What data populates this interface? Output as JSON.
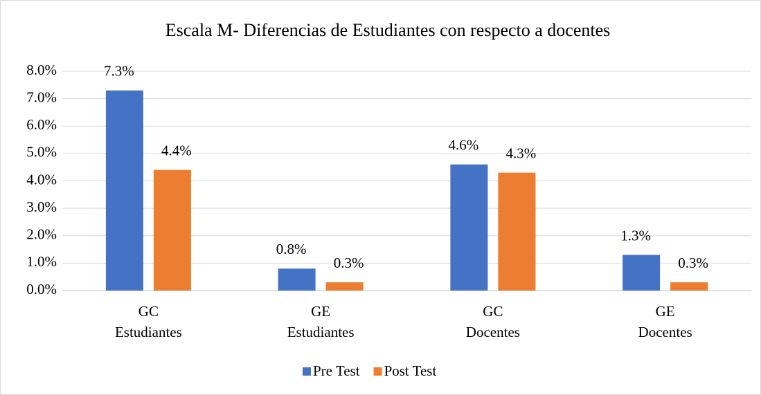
{
  "chart_data": {
    "type": "bar",
    "title": "Escala M- Diferencias  de Estudiantes con respecto a docentes",
    "categories": [
      [
        "GC",
        "Estudiantes"
      ],
      [
        "GE",
        "Estudiantes"
      ],
      [
        "GC",
        "Docentes"
      ],
      [
        "GE",
        "Docentes"
      ]
    ],
    "series": [
      {
        "name": "Pre Test",
        "color": "#4472c4",
        "values": [
          7.3,
          0.8,
          4.6,
          1.3
        ],
        "value_labels": [
          "7.3%",
          "0.8%",
          "4.6%",
          "1.3%"
        ]
      },
      {
        "name": "Post Test",
        "color": "#ed7d31",
        "values": [
          4.4,
          0.3,
          4.3,
          0.3
        ],
        "value_labels": [
          "4.4%",
          "0.3%",
          "4.3%",
          "0.3%"
        ]
      }
    ],
    "ylim": [
      0,
      8
    ],
    "yticks": [
      {
        "value": 0,
        "label": "0.0%"
      },
      {
        "value": 1,
        "label": "1.0%"
      },
      {
        "value": 2,
        "label": "2.0%"
      },
      {
        "value": 3,
        "label": "3.0%"
      },
      {
        "value": 4,
        "label": "4.0%"
      },
      {
        "value": 5,
        "label": "5.0%"
      },
      {
        "value": 6,
        "label": "6.0%"
      },
      {
        "value": 7,
        "label": "7.0%"
      },
      {
        "value": 8,
        "label": "8.0%"
      }
    ],
    "grid": true,
    "legend": "bottom"
  }
}
